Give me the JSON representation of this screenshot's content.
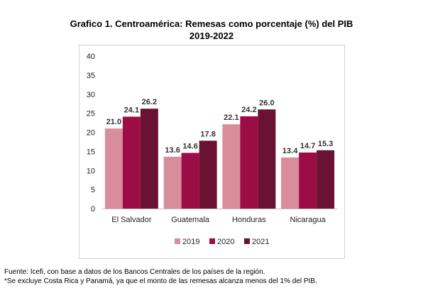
{
  "chart_data": {
    "type": "bar",
    "title": "Grafico 1. Centroamérica: Remesas como porcentaje (%) del PIB",
    "subtitle": "2019-2022",
    "categories": [
      "El Salvador",
      "Guatemala",
      "Honduras",
      "Nicaragua"
    ],
    "series": [
      {
        "name": "2019",
        "values": [
          21.0,
          13.6,
          22.1,
          13.4
        ],
        "color": "#d98d9b"
      },
      {
        "name": "2020",
        "values": [
          24.1,
          14.6,
          24.2,
          14.7
        ],
        "color": "#9c0d45"
      },
      {
        "name": "2021",
        "values": [
          26.2,
          17.8,
          26.0,
          15.3
        ],
        "color": "#6a1232"
      }
    ],
    "ylim": [
      0,
      40
    ],
    "yticks": [
      0,
      5,
      10,
      15,
      20,
      25,
      30,
      35,
      40
    ],
    "grid": false,
    "legend": "bottom",
    "data_labels": true
  },
  "footnotes": [
    "Fuente: Icefi, con base a datos de los Bancos Centrales de los países de la región.",
    "*Se excluye Costa Rica y Panamá, ya que el monto de las remesas alcanza menos del 1% del PIB."
  ]
}
